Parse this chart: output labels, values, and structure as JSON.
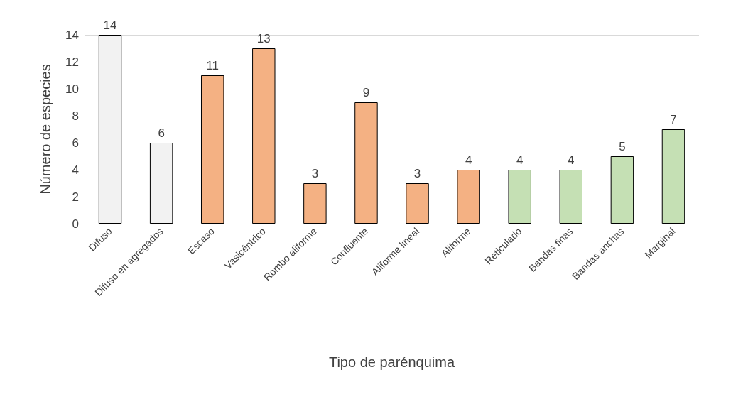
{
  "chart_data": {
    "type": "bar",
    "xlabel": "Tipo de parénquima",
    "ylabel": "Número de especies",
    "categories": [
      "Difuso",
      "Difuso en agregados",
      "Escaso",
      "Vasicéntrico",
      "Rombo aliforme",
      "Confluente",
      "Aliforme lineal",
      "Aliforme",
      "Reticulado",
      "Bandas finas",
      "Bandas anchas",
      "Marginal"
    ],
    "values": [
      14,
      6,
      11,
      13,
      3,
      9,
      3,
      4,
      4,
      4,
      5,
      7
    ],
    "colors": [
      "#f2f2f2",
      "#f2f2f2",
      "#f4b183",
      "#f4b183",
      "#f4b183",
      "#f4b183",
      "#f4b183",
      "#f4b183",
      "#c5e0b4",
      "#c5e0b4",
      "#c5e0b4",
      "#c5e0b4"
    ],
    "ylim": [
      0,
      14
    ],
    "yticks": [
      0,
      2,
      4,
      6,
      8,
      10,
      12,
      14
    ],
    "grid": "y",
    "data_labels": true
  }
}
